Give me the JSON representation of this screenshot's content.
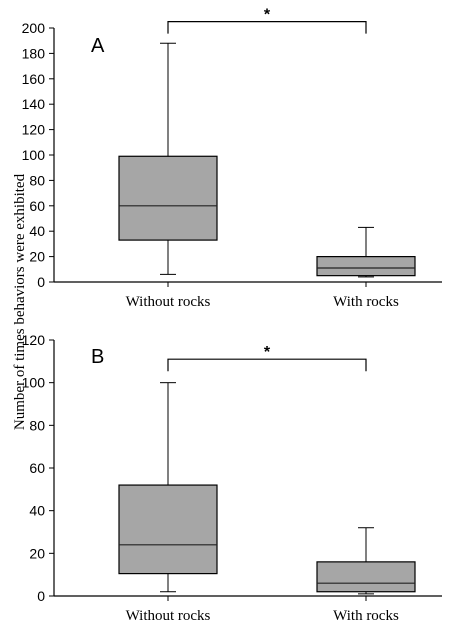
{
  "y_axis_title": "Number of times behaviors were exhibited",
  "colors": {
    "box_fill": "#a6a6a6",
    "line": "#000000"
  },
  "chart_data": [
    {
      "type": "box",
      "panel_label": "A",
      "categories": [
        "Without rocks",
        "With rocks"
      ],
      "ylim": [
        0,
        200
      ],
      "yticks": [
        0,
        20,
        40,
        60,
        80,
        100,
        120,
        140,
        160,
        180,
        200
      ],
      "boxes": [
        {
          "category": "Without rocks",
          "min": 6,
          "q1": 33,
          "median": 60,
          "q3": 99,
          "max": 188
        },
        {
          "category": "With rocks",
          "min": 4,
          "q1": 5,
          "median": 11,
          "q3": 20,
          "max": 43
        }
      ],
      "significance": {
        "between": [
          "Without rocks",
          "With rocks"
        ],
        "label": "*",
        "y": 205
      }
    },
    {
      "type": "box",
      "panel_label": "B",
      "categories": [
        "Without rocks",
        "With rocks"
      ],
      "ylim": [
        0,
        120
      ],
      "yticks": [
        0,
        20,
        40,
        60,
        80,
        100,
        120
      ],
      "boxes": [
        {
          "category": "Without rocks",
          "min": 2,
          "q1": 10.5,
          "median": 24,
          "q3": 52,
          "max": 100
        },
        {
          "category": "With rocks",
          "min": 1,
          "q1": 2,
          "median": 6,
          "q3": 16,
          "max": 32
        }
      ],
      "significance": {
        "between": [
          "Without rocks",
          "With rocks"
        ],
        "label": "*",
        "y": 111
      }
    }
  ]
}
